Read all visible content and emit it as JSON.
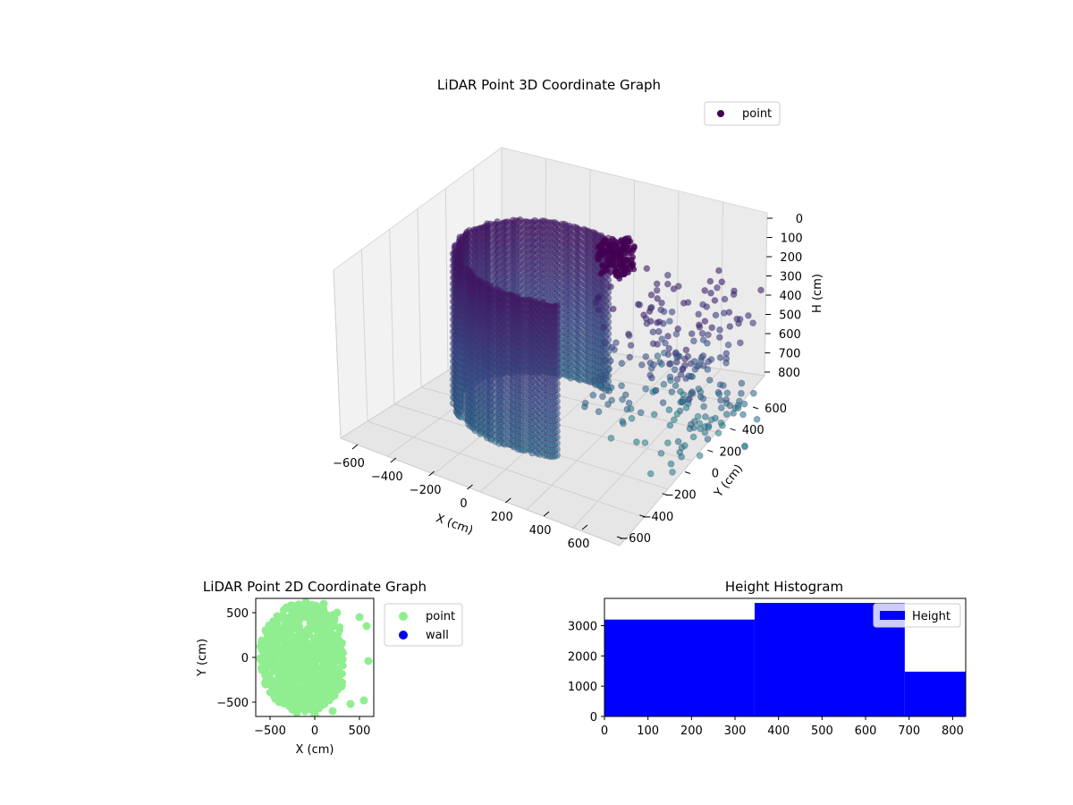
{
  "chart_data": [
    {
      "type": "scatter",
      "projection": "3d",
      "title": "LiDAR Point 3D Coordinate Graph",
      "xlabel": "X (cm)",
      "ylabel": "Y (cm)",
      "zlabel": "H (cm)",
      "xticks": [
        "−600",
        "−400",
        "−200",
        "0",
        "200",
        "400",
        "600"
      ],
      "yticks": [
        "−600",
        "−400",
        "−200",
        "0",
        "200",
        "400",
        "600"
      ],
      "zticks": [
        "0",
        "100",
        "200",
        "300",
        "400",
        "500",
        "600",
        "700",
        "800"
      ],
      "xlim": [
        -650,
        650
      ],
      "ylim": [
        -650,
        650
      ],
      "zlim": [
        0,
        830
      ],
      "z_inverted": true,
      "colormap": "viridis",
      "legend": {
        "entries": [
          "point"
        ],
        "placement": "top-right"
      },
      "grid": true,
      "series": [
        {
          "name": "point",
          "points": [
            {
              "x": -500,
              "y": -200,
              "h": 100
            },
            {
              "x": -450,
              "y": -350,
              "h": 150
            },
            {
              "x": -300,
              "y": -500,
              "h": 200
            },
            {
              "x": -100,
              "y": -600,
              "h": 250
            },
            {
              "x": 100,
              "y": -580,
              "h": 300
            },
            {
              "x": 300,
              "y": -450,
              "h": 400
            },
            {
              "x": 400,
              "y": -300,
              "h": 500
            },
            {
              "x": -550,
              "y": 100,
              "h": 600
            },
            {
              "x": -400,
              "y": 350,
              "h": 700
            },
            {
              "x": -200,
              "y": 500,
              "h": 800
            },
            {
              "x": 450,
              "y": 300,
              "h": 350
            },
            {
              "x": 500,
              "y": 450,
              "h": 450
            },
            {
              "x": 600,
              "y": 550,
              "h": 700
            },
            {
              "x": 620,
              "y": 300,
              "h": 820
            },
            {
              "x": 550,
              "y": 100,
              "h": 780
            }
          ]
        }
      ]
    },
    {
      "type": "scatter",
      "title": "LiDAR Point 2D Coordinate Graph",
      "xlabel": "X (cm)",
      "ylabel": "Y (cm)",
      "xticks": [
        "−500",
        "0",
        "500"
      ],
      "yticks": [
        "−500",
        "0",
        "500"
      ],
      "xlim": [
        -660,
        660
      ],
      "ylim": [
        -660,
        660
      ],
      "legend": {
        "entries": [
          "point",
          "wall"
        ],
        "placement": "outside-right"
      },
      "series": [
        {
          "name": "point",
          "color": "#90ee90",
          "points": [
            {
              "x": -550,
              "y": 0
            },
            {
              "x": -500,
              "y": -300
            },
            {
              "x": -400,
              "y": -500
            },
            {
              "x": -200,
              "y": -620
            },
            {
              "x": 0,
              "y": -640
            },
            {
              "x": 200,
              "y": -600
            },
            {
              "x": -450,
              "y": 350
            },
            {
              "x": -300,
              "y": 550
            },
            {
              "x": -100,
              "y": 620
            },
            {
              "x": 100,
              "y": 600
            },
            {
              "x": 250,
              "y": 500
            },
            {
              "x": 300,
              "y": 150
            },
            {
              "x": 250,
              "y": -150
            },
            {
              "x": 500,
              "y": 450
            },
            {
              "x": 580,
              "y": 350
            },
            {
              "x": 600,
              "y": -40
            },
            {
              "x": 550,
              "y": -480
            },
            {
              "x": 400,
              "y": -520
            },
            {
              "x": -200,
              "y": 0
            },
            {
              "x": 0,
              "y": 200
            },
            {
              "x": 100,
              "y": -200
            }
          ]
        },
        {
          "name": "wall",
          "color": "#0000ee",
          "points": []
        }
      ]
    },
    {
      "type": "bar",
      "subtype": "histogram",
      "title": "Height Histogram",
      "xticks": [
        "0",
        "100",
        "200",
        "300",
        "400",
        "500",
        "600",
        "700",
        "800"
      ],
      "yticks": [
        "0",
        "1000",
        "2000",
        "3000"
      ],
      "xlim": [
        0,
        830
      ],
      "ylim": [
        0,
        3900
      ],
      "color": "#0000ff",
      "legend": {
        "entries": [
          "Height"
        ],
        "placement": "upper right"
      },
      "bins": [
        {
          "start": 0,
          "end": 345,
          "count": 3200
        },
        {
          "start": 345,
          "end": 690,
          "count": 3750
        },
        {
          "start": 690,
          "end": 830,
          "count": 1480
        }
      ]
    }
  ]
}
